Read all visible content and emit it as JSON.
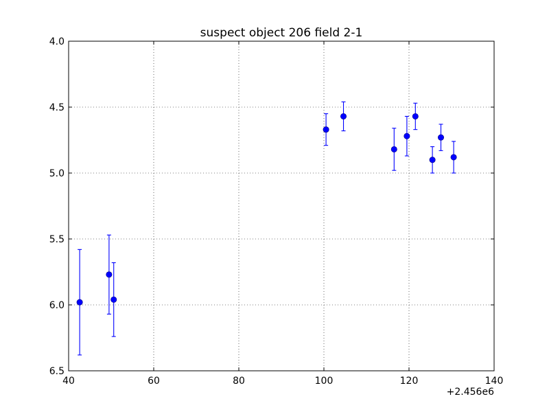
{
  "chart_data": {
    "type": "scatter",
    "title": "suspect object 206 field 2-1",
    "xlabel": "",
    "ylabel": "",
    "x_offset_label": "+2.456e6",
    "xlim": [
      40,
      140
    ],
    "ylim": [
      6.5,
      4.0
    ],
    "y_inverted": true,
    "grid": true,
    "x_ticks": [
      "40",
      "60",
      "80",
      "100",
      "120",
      "140"
    ],
    "y_ticks": [
      "4.0",
      "4.5",
      "5.0",
      "5.5",
      "6.0",
      "6.5"
    ],
    "marker_color": "#0000ff",
    "points": [
      {
        "x": 42.6,
        "y": 5.98,
        "err": 0.4
      },
      {
        "x": 49.5,
        "y": 5.77,
        "err": 0.3
      },
      {
        "x": 50.6,
        "y": 5.96,
        "err": 0.28
      },
      {
        "x": 100.5,
        "y": 4.67,
        "err": 0.12
      },
      {
        "x": 104.6,
        "y": 4.57,
        "err": 0.11
      },
      {
        "x": 116.5,
        "y": 4.82,
        "err": 0.16
      },
      {
        "x": 119.5,
        "y": 4.72,
        "err": 0.15
      },
      {
        "x": 121.5,
        "y": 4.57,
        "err": 0.1
      },
      {
        "x": 125.5,
        "y": 4.9,
        "err": 0.1
      },
      {
        "x": 127.5,
        "y": 4.73,
        "err": 0.1
      },
      {
        "x": 130.5,
        "y": 4.88,
        "err": 0.12
      }
    ]
  }
}
